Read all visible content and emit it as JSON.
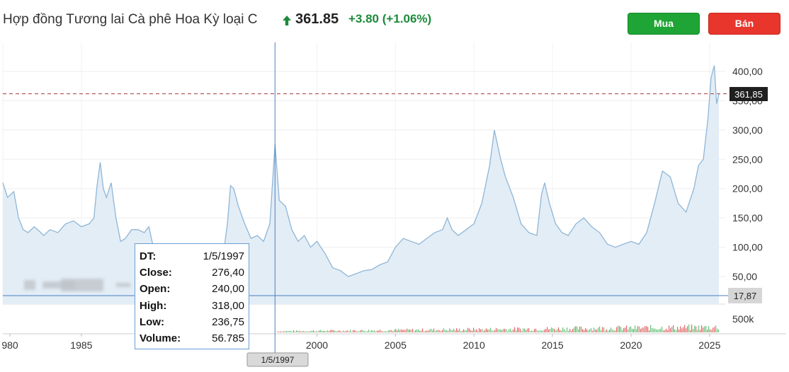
{
  "header": {
    "title": "Hợp đồng Tương lai Cà phê Hoa Kỳ loại C",
    "price": "361.85",
    "change": "+3.80",
    "change_pct": "(+1.06%)",
    "direction_icon": "arrow-up-icon",
    "up_color": "#1c8a3a"
  },
  "actions": {
    "buy_label": "Mua",
    "sell_label": "Bán",
    "buy_color": "#1ea535",
    "sell_color": "#e8362d"
  },
  "crosshair": {
    "date_label": "1/5/1997",
    "value_label": "17,87"
  },
  "current_price_label": "361,85",
  "tooltip": {
    "rows": [
      {
        "key": "DT:",
        "value": "1/5/1997"
      },
      {
        "key": "Close:",
        "value": "276,40"
      },
      {
        "key": "Open:",
        "value": "240,00"
      },
      {
        "key": "High:",
        "value": "318,00"
      },
      {
        "key": "Low:",
        "value": "236,75"
      },
      {
        "key": "Volume:",
        "value": "56.785"
      }
    ]
  },
  "chart_data": {
    "type": "area",
    "x_ticks": [
      "980",
      "1985",
      "2000",
      "2005",
      "2010",
      "2015",
      "2020",
      "2025"
    ],
    "y_ticks": [
      "400,00",
      "350,00",
      "300,00",
      "250,00",
      "200,00",
      "150,00",
      "100,00",
      "50,00"
    ],
    "y_values": [
      400,
      350,
      300,
      250,
      200,
      150,
      100,
      50
    ],
    "volume_tick": "500k",
    "ylim": [
      0,
      420
    ],
    "xlim": [
      1980,
      2026
    ],
    "current_price": 361.85,
    "crosshair_x": 1997.33,
    "crosshair_y": 17.87,
    "series": [
      {
        "values": [
          [
            1980.0,
            210
          ],
          [
            1980.3,
            185
          ],
          [
            1980.7,
            195
          ],
          [
            1981.0,
            150
          ],
          [
            1981.3,
            130
          ],
          [
            1981.6,
            125
          ],
          [
            1982.0,
            135
          ],
          [
            1982.3,
            128
          ],
          [
            1982.6,
            120
          ],
          [
            1983.0,
            130
          ],
          [
            1983.5,
            125
          ],
          [
            1984.0,
            140
          ],
          [
            1984.5,
            145
          ],
          [
            1985.0,
            135
          ],
          [
            1985.5,
            140
          ],
          [
            1985.8,
            150
          ],
          [
            1986.0,
            205
          ],
          [
            1986.2,
            245
          ],
          [
            1986.4,
            200
          ],
          [
            1986.6,
            185
          ],
          [
            1986.9,
            210
          ],
          [
            1987.2,
            150
          ],
          [
            1987.5,
            110
          ],
          [
            1987.8,
            115
          ],
          [
            1988.2,
            130
          ],
          [
            1988.6,
            130
          ],
          [
            1989.0,
            125
          ],
          [
            1989.3,
            135
          ],
          [
            1989.5,
            110
          ],
          [
            1989.8,
            80
          ],
          [
            1990.2,
            85
          ],
          [
            1990.6,
            95
          ],
          [
            1991.0,
            85
          ],
          [
            1991.5,
            80
          ],
          [
            1992.0,
            65
          ],
          [
            1992.5,
            60
          ],
          [
            1993.0,
            65
          ],
          [
            1993.5,
            70
          ],
          [
            1994.0,
            80
          ],
          [
            1994.3,
            140
          ],
          [
            1994.5,
            205
          ],
          [
            1994.7,
            200
          ],
          [
            1995.0,
            170
          ],
          [
            1995.4,
            140
          ],
          [
            1995.8,
            115
          ],
          [
            1996.2,
            120
          ],
          [
            1996.6,
            110
          ],
          [
            1997.0,
            140
          ],
          [
            1997.33,
            276
          ],
          [
            1997.6,
            180
          ],
          [
            1998.0,
            170
          ],
          [
            1998.4,
            130
          ],
          [
            1998.8,
            110
          ],
          [
            1999.2,
            120
          ],
          [
            1999.6,
            100
          ],
          [
            2000.0,
            110
          ],
          [
            2000.5,
            90
          ],
          [
            2001.0,
            65
          ],
          [
            2001.5,
            60
          ],
          [
            2002.0,
            50
          ],
          [
            2002.5,
            55
          ],
          [
            2003.0,
            60
          ],
          [
            2003.5,
            62
          ],
          [
            2004.0,
            70
          ],
          [
            2004.5,
            75
          ],
          [
            2005.0,
            100
          ],
          [
            2005.5,
            115
          ],
          [
            2006.0,
            110
          ],
          [
            2006.5,
            105
          ],
          [
            2007.0,
            115
          ],
          [
            2007.5,
            125
          ],
          [
            2008.0,
            130
          ],
          [
            2008.3,
            150
          ],
          [
            2008.6,
            130
          ],
          [
            2009.0,
            120
          ],
          [
            2009.5,
            130
          ],
          [
            2010.0,
            140
          ],
          [
            2010.5,
            175
          ],
          [
            2011.0,
            240
          ],
          [
            2011.3,
            300
          ],
          [
            2011.7,
            250
          ],
          [
            2012.0,
            220
          ],
          [
            2012.5,
            185
          ],
          [
            2013.0,
            140
          ],
          [
            2013.5,
            125
          ],
          [
            2014.0,
            120
          ],
          [
            2014.3,
            190
          ],
          [
            2014.5,
            210
          ],
          [
            2014.8,
            175
          ],
          [
            2015.2,
            140
          ],
          [
            2015.6,
            125
          ],
          [
            2016.0,
            120
          ],
          [
            2016.5,
            140
          ],
          [
            2017.0,
            150
          ],
          [
            2017.5,
            135
          ],
          [
            2018.0,
            125
          ],
          [
            2018.5,
            105
          ],
          [
            2019.0,
            100
          ],
          [
            2019.5,
            105
          ],
          [
            2020.0,
            110
          ],
          [
            2020.5,
            105
          ],
          [
            2021.0,
            125
          ],
          [
            2021.5,
            175
          ],
          [
            2022.0,
            230
          ],
          [
            2022.5,
            220
          ],
          [
            2023.0,
            175
          ],
          [
            2023.5,
            160
          ],
          [
            2024.0,
            200
          ],
          [
            2024.3,
            240
          ],
          [
            2024.6,
            250
          ],
          [
            2024.9,
            320
          ],
          [
            2025.1,
            390
          ],
          [
            2025.3,
            410
          ],
          [
            2025.45,
            345
          ],
          [
            2025.6,
            361.85
          ]
        ]
      }
    ],
    "line_color": "#8fb6d6",
    "fill_color": "#e3edf6",
    "price_line_color": "#a33a3a"
  }
}
